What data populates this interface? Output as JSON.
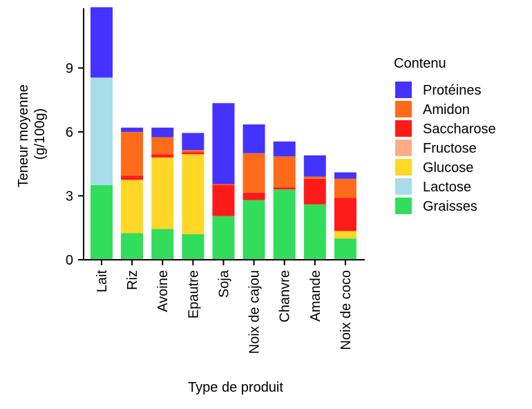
{
  "chart_data": {
    "type": "bar",
    "stacked": true,
    "title": "",
    "xlabel": "Type de produit",
    "ylabel": [
      "Teneur moyenne",
      "(g/100g)"
    ],
    "ylim": [
      0,
      11.8
    ],
    "yticks": [
      0,
      3,
      6,
      9
    ],
    "grid": false,
    "legend_title": "Contenu",
    "legend_position": "right",
    "categories": [
      "Lait",
      "Riz",
      "Avoine",
      "Epautre",
      "Soja",
      "Noix de cajou",
      "Chanvre",
      "Amande",
      "Noix de coco"
    ],
    "stack_order": [
      "Graisses",
      "Lactose",
      "Glucose",
      "Fructose",
      "Saccharose",
      "Amidon",
      "Protéines"
    ],
    "legend_order": [
      "Protéines",
      "Amidon",
      "Saccharose",
      "Fructose",
      "Glucose",
      "Lactose",
      "Graisses"
    ],
    "series": [
      {
        "name": "Graisses",
        "color": "#33dd5c",
        "values": [
          3.5,
          1.25,
          1.45,
          1.2,
          2.05,
          2.8,
          3.3,
          2.6,
          1.0
        ]
      },
      {
        "name": "Lactose",
        "color": "#a8dde8",
        "values": [
          5.05,
          0,
          0,
          0,
          0,
          0,
          0,
          0,
          0
        ]
      },
      {
        "name": "Glucose",
        "color": "#ffd726",
        "values": [
          0,
          2.5,
          3.35,
          3.75,
          0,
          0,
          0,
          0,
          0.35
        ]
      },
      {
        "name": "Fructose",
        "color": "#ffab85",
        "values": [
          0,
          0,
          0,
          0,
          0,
          0,
          0,
          0,
          0
        ]
      },
      {
        "name": "Saccharose",
        "color": "#ff1a1a",
        "values": [
          0,
          0.2,
          0.15,
          0.1,
          1.45,
          0.35,
          0.1,
          1.2,
          1.55
        ]
      },
      {
        "name": "Amidon",
        "color": "#ff6b1a",
        "values": [
          0,
          2.05,
          0.8,
          0.1,
          0.05,
          1.85,
          1.45,
          0.1,
          0.9
        ]
      },
      {
        "name": "Protéines",
        "color": "#4433ff",
        "values": [
          3.3,
          0.2,
          0.45,
          0.8,
          3.8,
          1.35,
          0.7,
          1.0,
          0.3
        ]
      }
    ]
  }
}
